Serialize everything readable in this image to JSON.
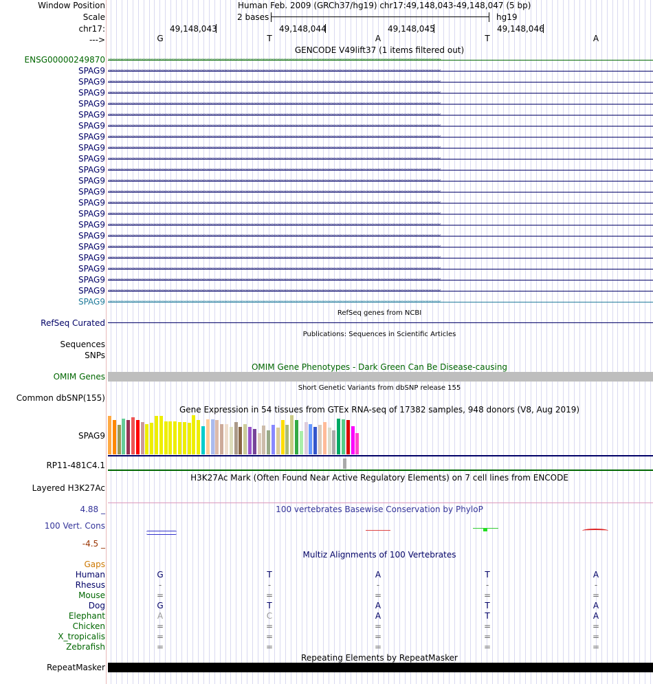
{
  "header": {
    "window_position_label": "Window Position",
    "window_position_value": "Human Feb. 2009 (GRCh37/hg19)   chr17:49,148,043-49,148,047 (5 bp)",
    "scale_label": "Scale",
    "scale_value": "2 bases",
    "assembly": "hg19",
    "chrom_label": "chr17:",
    "strand_label": "--->",
    "coordinates": [
      "49,148,043",
      "49,148,044",
      "49,148,045",
      "49,148,046"
    ],
    "bases": [
      "G",
      "T",
      "A",
      "T",
      "A"
    ]
  },
  "gencode": {
    "title": "GENCODE V49lift37 (1 items filtered out)",
    "first_gene": "ENSG00000249870",
    "transcripts": [
      "SPAG9",
      "SPAG9",
      "SPAG9",
      "SPAG9",
      "SPAG9",
      "SPAG9",
      "SPAG9",
      "SPAG9",
      "SPAG9",
      "SPAG9",
      "SPAG9",
      "SPAG9",
      "SPAG9",
      "SPAG9",
      "SPAG9",
      "SPAG9",
      "SPAG9",
      "SPAG9",
      "SPAG9",
      "SPAG9",
      "SPAG9",
      "SPAG9"
    ]
  },
  "refseq": {
    "title": "RefSeq genes from NCBI",
    "label": "RefSeq Curated"
  },
  "publications": {
    "title": "Publications: Sequences in Scientific Articles",
    "label1": "Sequences",
    "label2": "SNPs"
  },
  "omim": {
    "title": "OMIM Gene Phenotypes - Dark Green Can Be Disease-causing",
    "label": "OMIM Genes"
  },
  "dbsnp": {
    "title": "Short Genetic Variants from dbSNP release 155",
    "label": "Common dbSNP(155)"
  },
  "gtex": {
    "title": "Gene Expression in 54 tissues from GTEx RNA-seq of 17382 samples, 948 donors (V8, Aug 2019)",
    "label": "SPAG9",
    "label2": "RP11-481C4.1",
    "bar_values": [
      0.98,
      0.88,
      0.75,
      0.92,
      0.88,
      0.95,
      0.88,
      0.82,
      0.78,
      0.8,
      0.98,
      0.98,
      0.85,
      0.85,
      0.84,
      0.82,
      0.82,
      0.8,
      1.0,
      0.88,
      0.72,
      0.9,
      0.9,
      0.88,
      0.78,
      0.78,
      0.7,
      0.82,
      0.7,
      0.78,
      0.7,
      0.65,
      0.54,
      0.73,
      0.62,
      0.75,
      0.68,
      0.88,
      0.75,
      1.0,
      0.88,
      0.6,
      0.82,
      0.78,
      0.7,
      0.75,
      0.82,
      0.68,
      0.62,
      0.92,
      0.9,
      0.88,
      0.72,
      0.55
    ],
    "bar_colors": [
      "#FFAA44",
      "#FF8800",
      "#999955",
      "#66CC99",
      "#993355",
      "#EE5555",
      "#FF0000",
      "#CC9999",
      "#EEEE00",
      "#EEEE00",
      "#EEEE00",
      "#EEEE00",
      "#EEEE00",
      "#EEEE00",
      "#EEEE00",
      "#EEEE00",
      "#EEEE00",
      "#EEEE00",
      "#EEEE00",
      "#EEEE00",
      "#00CCCC",
      "#FFCC99",
      "#AABBEE",
      "#ddbbaa",
      "#ccaa99",
      "#EEDDCC",
      "#DDDDBB",
      "#AA9988",
      "#886644",
      "#cccc99",
      "#9955cc",
      "#774499",
      "#ddccbb",
      "#ccbbaa",
      "#99aa88",
      "#8888ff",
      "#ddcc99",
      "#FFDD00",
      "#aabb77",
      "#cccc88",
      "#33aa44",
      "#aaeeaa",
      "#ddccdd",
      "#6699ff",
      "#3355cc",
      "#ddccbb",
      "#ffbb99",
      "#ddddcc",
      "#aaaaaa",
      "#00aa66",
      "#55cc88",
      "#dd0000",
      "#ff00ff",
      "#ff44cc"
    ]
  },
  "h3k27ac": {
    "title": "H3K27Ac Mark (Often Found Near Active Regulatory Elements) on 7 cell lines from ENCODE",
    "label": "Layered H3K27Ac"
  },
  "phylop": {
    "title": "100 vertebrates Basewise Conservation by PhyloP",
    "label": "100 Vert. Cons",
    "max_value": "4.88 _",
    "min_value": "-4.5 _"
  },
  "multiz": {
    "title": "Multiz Alignments of 100 Vertebrates",
    "gaps_label": "Gaps",
    "species": [
      {
        "name": "Human",
        "color": "#000066",
        "bases": [
          "G",
          "T",
          "A",
          "T",
          "A"
        ],
        "base_color": "#000066"
      },
      {
        "name": "Rhesus",
        "color": "#000066",
        "bases": [
          "-",
          "-",
          "-",
          "-",
          "-"
        ],
        "base_color": "#666666"
      },
      {
        "name": "Mouse",
        "color": "#006600",
        "bases": [
          "=",
          "=",
          "=",
          "=",
          "="
        ],
        "base_color": "#666666"
      },
      {
        "name": "Dog",
        "color": "#000066",
        "bases": [
          "G",
          "T",
          "A",
          "T",
          "A"
        ],
        "base_color": "#000066"
      },
      {
        "name": "Elephant",
        "color": "#006600",
        "bases": [
          "A",
          "C",
          "A",
          "T",
          "A"
        ],
        "base_color": "#000066"
      },
      {
        "name": "Chicken",
        "color": "#006600",
        "bases": [
          "=",
          "=",
          "=",
          "=",
          "="
        ],
        "base_color": "#666666"
      },
      {
        "name": "X_tropicalis",
        "color": "#006600",
        "bases": [
          "=",
          "=",
          "=",
          "=",
          "="
        ],
        "base_color": "#666666"
      },
      {
        "name": "Zebrafish",
        "color": "#006600",
        "bases": [
          "=",
          "=",
          "=",
          "=",
          "="
        ],
        "base_color": "#666666"
      }
    ]
  },
  "repeatmasker": {
    "title": "Repeating Elements by RepeatMasker",
    "label": "RepeatMasker"
  },
  "colors": {
    "navy": "#000066",
    "green": "#006600",
    "teal": "#1f7a9a",
    "gray": "#bebebe",
    "phylop_blue": "#333399",
    "gaps_orange": "#cc7700"
  },
  "icons": {
    "forward": "forward-chevron-icon",
    "reverse": "reverse-chevron-icon"
  }
}
